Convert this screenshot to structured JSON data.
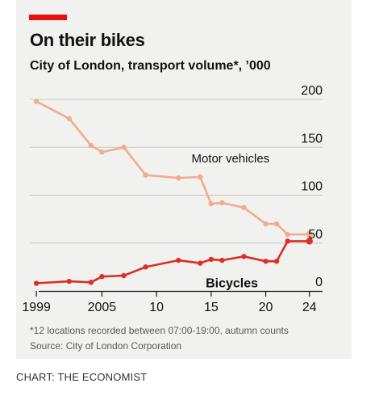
{
  "header": {
    "title": "On their bikes",
    "subtitle": "City of London, transport volume*, ’000"
  },
  "footer": {
    "note": "*12 locations recorded between 07:00-19:00, autumn counts",
    "source": "Source: City of London Corporation",
    "credit": "CHART: THE ECONOMIST"
  },
  "colors": {
    "background": "#f1f1ef",
    "accent_red": "#e3120b",
    "motor": "#f3ab8e",
    "bicycles": "#db2f27",
    "grid": "#c7c7c7",
    "axis": "#121212"
  },
  "chart_data": {
    "type": "line",
    "title": "On their bikes",
    "subtitle": "City of London, transport volume*, ’000",
    "x_ticks": [
      1999,
      2005,
      2010,
      2015,
      2020,
      2024
    ],
    "x_tick_labels": [
      "1999",
      "2005",
      "10",
      "15",
      "20",
      "24"
    ],
    "xlim": [
      1998.4,
      2025.2
    ],
    "ylim": [
      0,
      200
    ],
    "y_ticks": [
      0,
      50,
      100,
      150,
      200
    ],
    "y_axis_position": "right",
    "grid": true,
    "legend": "inline labels",
    "series": [
      {
        "name": "Motor vehicles",
        "x": [
          1999,
          2002,
          2004,
          2005,
          2007,
          2009,
          2012,
          2014,
          2015,
          2016,
          2018,
          2020,
          2021,
          2022,
          2024
        ],
        "values": [
          198,
          180,
          152,
          145,
          150,
          121,
          118,
          119,
          91,
          92,
          87,
          70,
          70,
          59,
          59
        ]
      },
      {
        "name": "Bicycles",
        "x": [
          1999,
          2002,
          2004,
          2005,
          2007,
          2009,
          2012,
          2014,
          2015,
          2016,
          2018,
          2020,
          2021,
          2022,
          2024
        ],
        "values": [
          8,
          10,
          9,
          15,
          16,
          25,
          32,
          29,
          33,
          32,
          36,
          31,
          31,
          52,
          52
        ]
      }
    ]
  }
}
